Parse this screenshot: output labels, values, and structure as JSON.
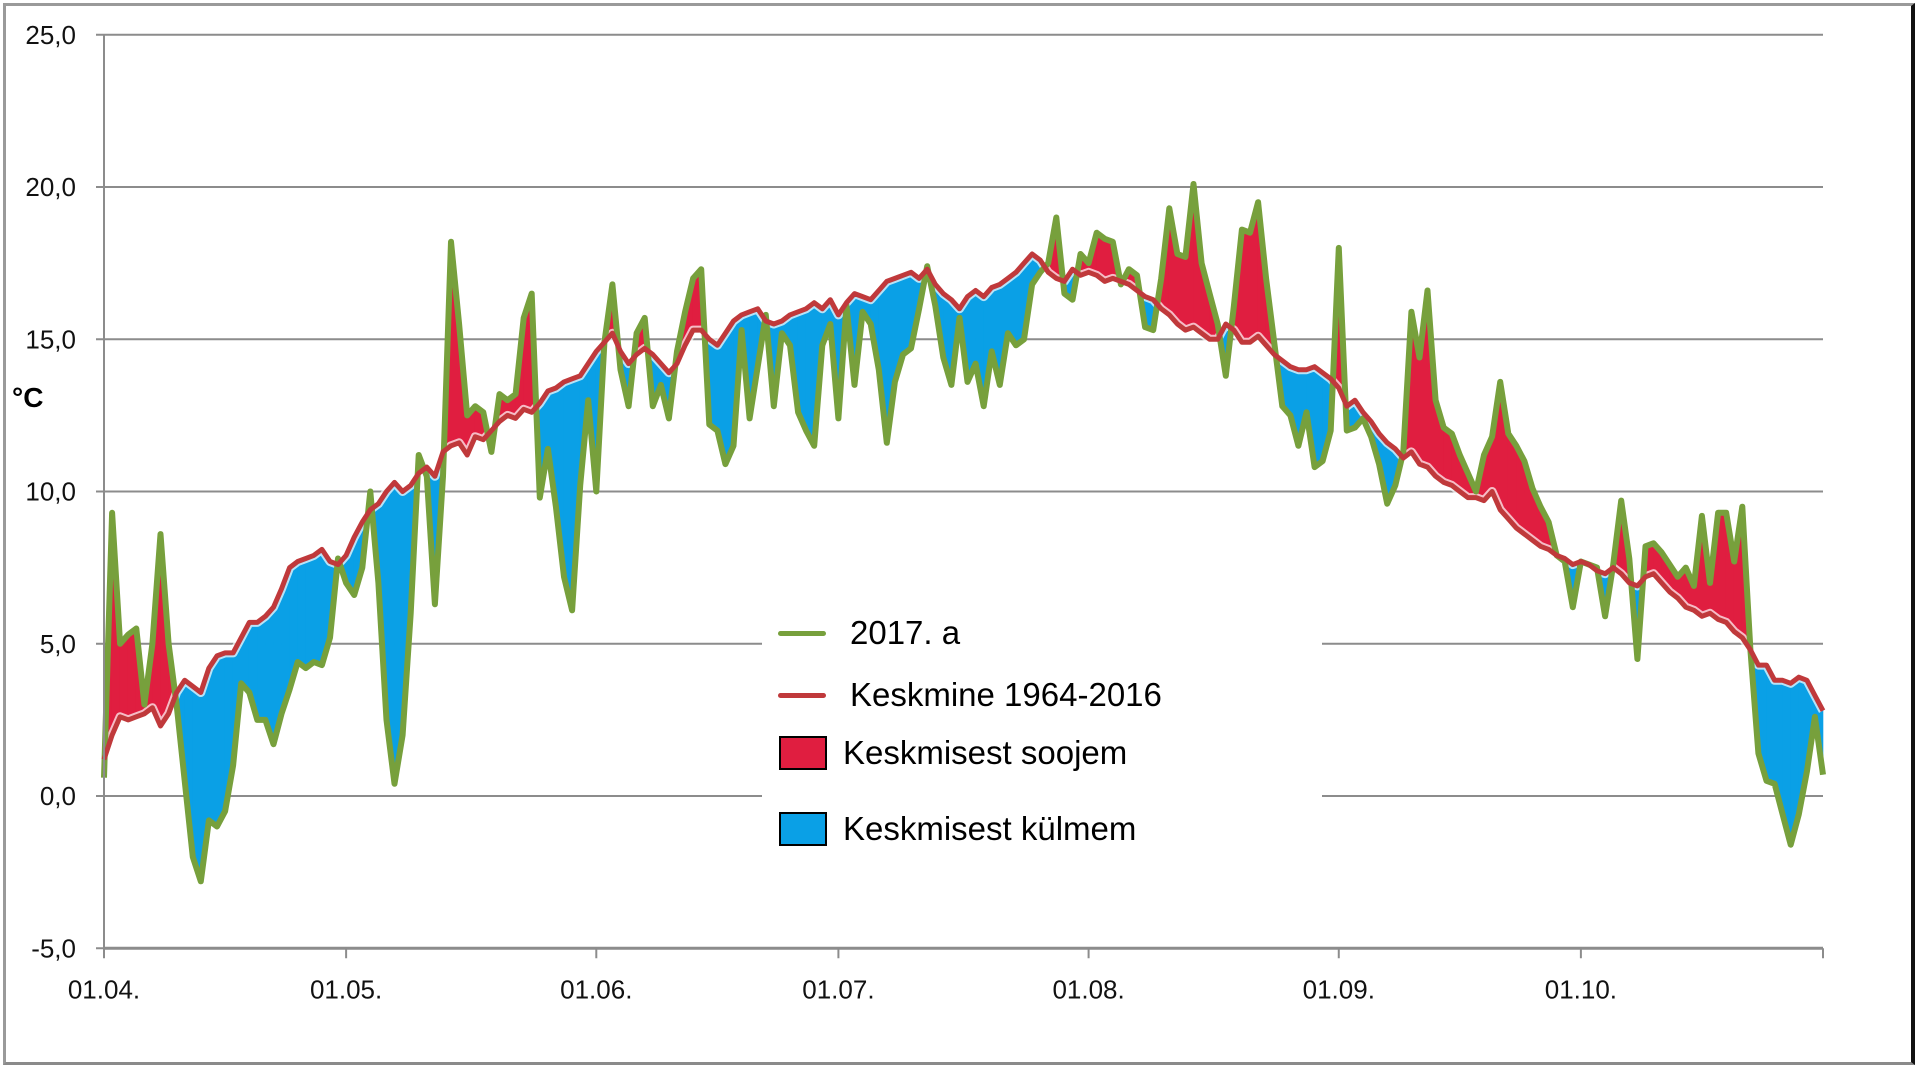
{
  "chart_data": {
    "type": "area",
    "title": "",
    "xlabel": "",
    "ylabel": "°C",
    "ylim": [
      -5.0,
      25.0
    ],
    "yticks": [
      "-5,0",
      "0,0",
      "5,0",
      "10,0",
      "15,0",
      "20,0",
      "25,0"
    ],
    "ytick_values": [
      -5,
      0,
      5,
      10,
      15,
      20,
      25
    ],
    "xticks": [
      "01.04.",
      "01.05.",
      "01.06.",
      "01.07.",
      "01.08.",
      "01.09.",
      "01.10."
    ],
    "xtick_day_index": [
      0,
      30,
      61,
      91,
      122,
      153,
      183
    ],
    "x_range": "01.04.–31.10. (daily, 214 days)",
    "grid": "horizontal",
    "legend_position": "center-bottom (inside plot)",
    "colors": {
      "series_2017": "#77a03c",
      "average": "#c0393b",
      "warmer_fill": "#e01e40",
      "colder_fill": "#0aa0e6",
      "grid": "#8c8c8c"
    },
    "legend": [
      {
        "label": "2017. a",
        "kind": "line",
        "color": "#77a03c"
      },
      {
        "label": "Keskmine 1964-2016",
        "kind": "line",
        "color": "#c0393b"
      },
      {
        "label": "Keskmisest soojem",
        "kind": "box",
        "color": "#e01e40"
      },
      {
        "label": "Keskmisest külmem",
        "kind": "box",
        "color": "#0aa0e6"
      }
    ],
    "series": [
      {
        "name": "2017. a",
        "values": [
          0.6,
          9.3,
          5.0,
          5.3,
          5.5,
          3.0,
          5.0,
          8.6,
          5.0,
          3.0,
          0.5,
          -2.0,
          -2.8,
          -0.8,
          -1.0,
          -0.5,
          1.0,
          3.7,
          3.4,
          2.5,
          2.5,
          1.7,
          2.7,
          3.5,
          4.4,
          4.2,
          4.4,
          4.3,
          5.2,
          7.8,
          7.0,
          6.6,
          7.5,
          10.0,
          7.0,
          2.5,
          0.4,
          2.0,
          6.0,
          11.2,
          10.5,
          6.3,
          10.5,
          18.2,
          15.5,
          12.5,
          12.8,
          12.6,
          11.3,
          13.2,
          13.0,
          13.2,
          15.7,
          16.5,
          9.8,
          11.4,
          9.5,
          7.2,
          6.1,
          10.2,
          13.0,
          10.0,
          14.9,
          16.8,
          14.0,
          12.8,
          15.2,
          15.7,
          12.8,
          13.5,
          12.4,
          14.6,
          15.9,
          17.0,
          17.3,
          12.2,
          12.0,
          10.9,
          11.5,
          15.3,
          12.4,
          14.1,
          15.8,
          12.8,
          15.2,
          14.8,
          12.6,
          12.0,
          11.5,
          14.8,
          15.5,
          12.4,
          16.1,
          13.5,
          15.9,
          15.5,
          14.0,
          11.6,
          13.6,
          14.5,
          14.7,
          16.0,
          17.4,
          16.1,
          14.4,
          13.5,
          15.7,
          13.6,
          14.2,
          12.8,
          14.6,
          13.5,
          15.2,
          14.8,
          15.0,
          16.8,
          17.2,
          17.5,
          19.0,
          16.5,
          16.3,
          17.8,
          17.5,
          18.5,
          18.3,
          18.2,
          16.8,
          17.3,
          17.1,
          15.4,
          15.3,
          17.0,
          19.3,
          17.8,
          17.7,
          20.1,
          17.5,
          16.5,
          15.5,
          13.8,
          16.1,
          18.6,
          18.5,
          19.5,
          17.0,
          14.9,
          12.8,
          12.5,
          11.5,
          12.6,
          10.8,
          11.0,
          12.0,
          18.0,
          12.0,
          12.1,
          12.4,
          11.8,
          10.9,
          9.6,
          10.2,
          11.3,
          15.9,
          14.4,
          16.6,
          13.0,
          12.1,
          11.9,
          11.2,
          10.6,
          10.0,
          11.2,
          11.8,
          13.6,
          11.9,
          11.5,
          11.0,
          10.1,
          9.5,
          9.0,
          7.9,
          7.7,
          6.2,
          7.7,
          7.6,
          7.5,
          5.9,
          7.6,
          9.7,
          7.8,
          4.5,
          8.2,
          8.3,
          8.0,
          7.6,
          7.2,
          7.5,
          6.9,
          9.2,
          7.0,
          9.3,
          9.3,
          7.7,
          9.5,
          4.8,
          1.4,
          0.5,
          0.4,
          -0.6,
          -1.6,
          -0.6,
          0.8,
          2.6,
          0.7
        ]
      },
      {
        "name": "Keskmine 1964-2016",
        "values": [
          1.2,
          2.0,
          2.6,
          2.5,
          2.6,
          2.7,
          2.9,
          2.3,
          2.7,
          3.4,
          3.8,
          3.6,
          3.4,
          4.2,
          4.6,
          4.7,
          4.7,
          5.2,
          5.7,
          5.7,
          5.9,
          6.2,
          6.8,
          7.5,
          7.7,
          7.8,
          7.9,
          8.1,
          7.7,
          7.6,
          7.9,
          8.5,
          9.0,
          9.4,
          9.6,
          10.0,
          10.3,
          10.0,
          10.2,
          10.6,
          10.8,
          10.5,
          11.3,
          11.5,
          11.6,
          11.2,
          11.8,
          11.7,
          12.0,
          12.3,
          12.5,
          12.4,
          12.7,
          12.6,
          12.9,
          13.3,
          13.4,
          13.6,
          13.7,
          13.8,
          14.2,
          14.6,
          14.9,
          15.2,
          14.6,
          14.2,
          14.5,
          14.7,
          14.5,
          14.2,
          13.9,
          14.2,
          14.8,
          15.3,
          15.3,
          15.0,
          14.8,
          15.2,
          15.6,
          15.8,
          15.9,
          16.0,
          15.6,
          15.5,
          15.6,
          15.8,
          15.9,
          16.0,
          16.2,
          16.0,
          16.3,
          15.8,
          16.2,
          16.5,
          16.4,
          16.3,
          16.6,
          16.9,
          17.0,
          17.1,
          17.2,
          17.0,
          17.3,
          16.8,
          16.5,
          16.3,
          16.0,
          16.4,
          16.6,
          16.4,
          16.7,
          16.8,
          17.0,
          17.2,
          17.5,
          17.8,
          17.6,
          17.2,
          17.0,
          16.9,
          17.3,
          17.1,
          17.2,
          17.1,
          16.9,
          17.0,
          16.9,
          16.8,
          16.6,
          16.4,
          16.3,
          16.0,
          15.8,
          15.5,
          15.3,
          15.4,
          15.2,
          15.0,
          15.0,
          15.5,
          15.3,
          14.9,
          14.9,
          15.1,
          14.8,
          14.5,
          14.3,
          14.1,
          14.0,
          14.0,
          14.1,
          13.9,
          13.7,
          13.4,
          12.8,
          13.0,
          12.6,
          12.3,
          11.9,
          11.6,
          11.4,
          11.1,
          11.3,
          10.9,
          10.8,
          10.5,
          10.3,
          10.2,
          10.0,
          9.8,
          9.8,
          9.7,
          10.0,
          9.4,
          9.1,
          8.8,
          8.6,
          8.4,
          8.2,
          8.1,
          7.9,
          7.8,
          7.6,
          7.7,
          7.6,
          7.4,
          7.3,
          7.5,
          7.3,
          7.0,
          6.9,
          7.2,
          7.3,
          7.0,
          6.7,
          6.5,
          6.2,
          6.1,
          5.9,
          6.0,
          5.8,
          5.7,
          5.4,
          5.2,
          4.8,
          4.3,
          4.3,
          3.8,
          3.8,
          3.7,
          3.9,
          3.8,
          3.3,
          2.8
        ]
      }
    ]
  },
  "axis": {
    "unit_label": "°C"
  },
  "legend": {
    "items": [
      {
        "label": "2017. a"
      },
      {
        "label": "Keskmine 1964-2016"
      },
      {
        "label": "Keskmisest soojem"
      },
      {
        "label": "Keskmisest külmem"
      }
    ]
  }
}
